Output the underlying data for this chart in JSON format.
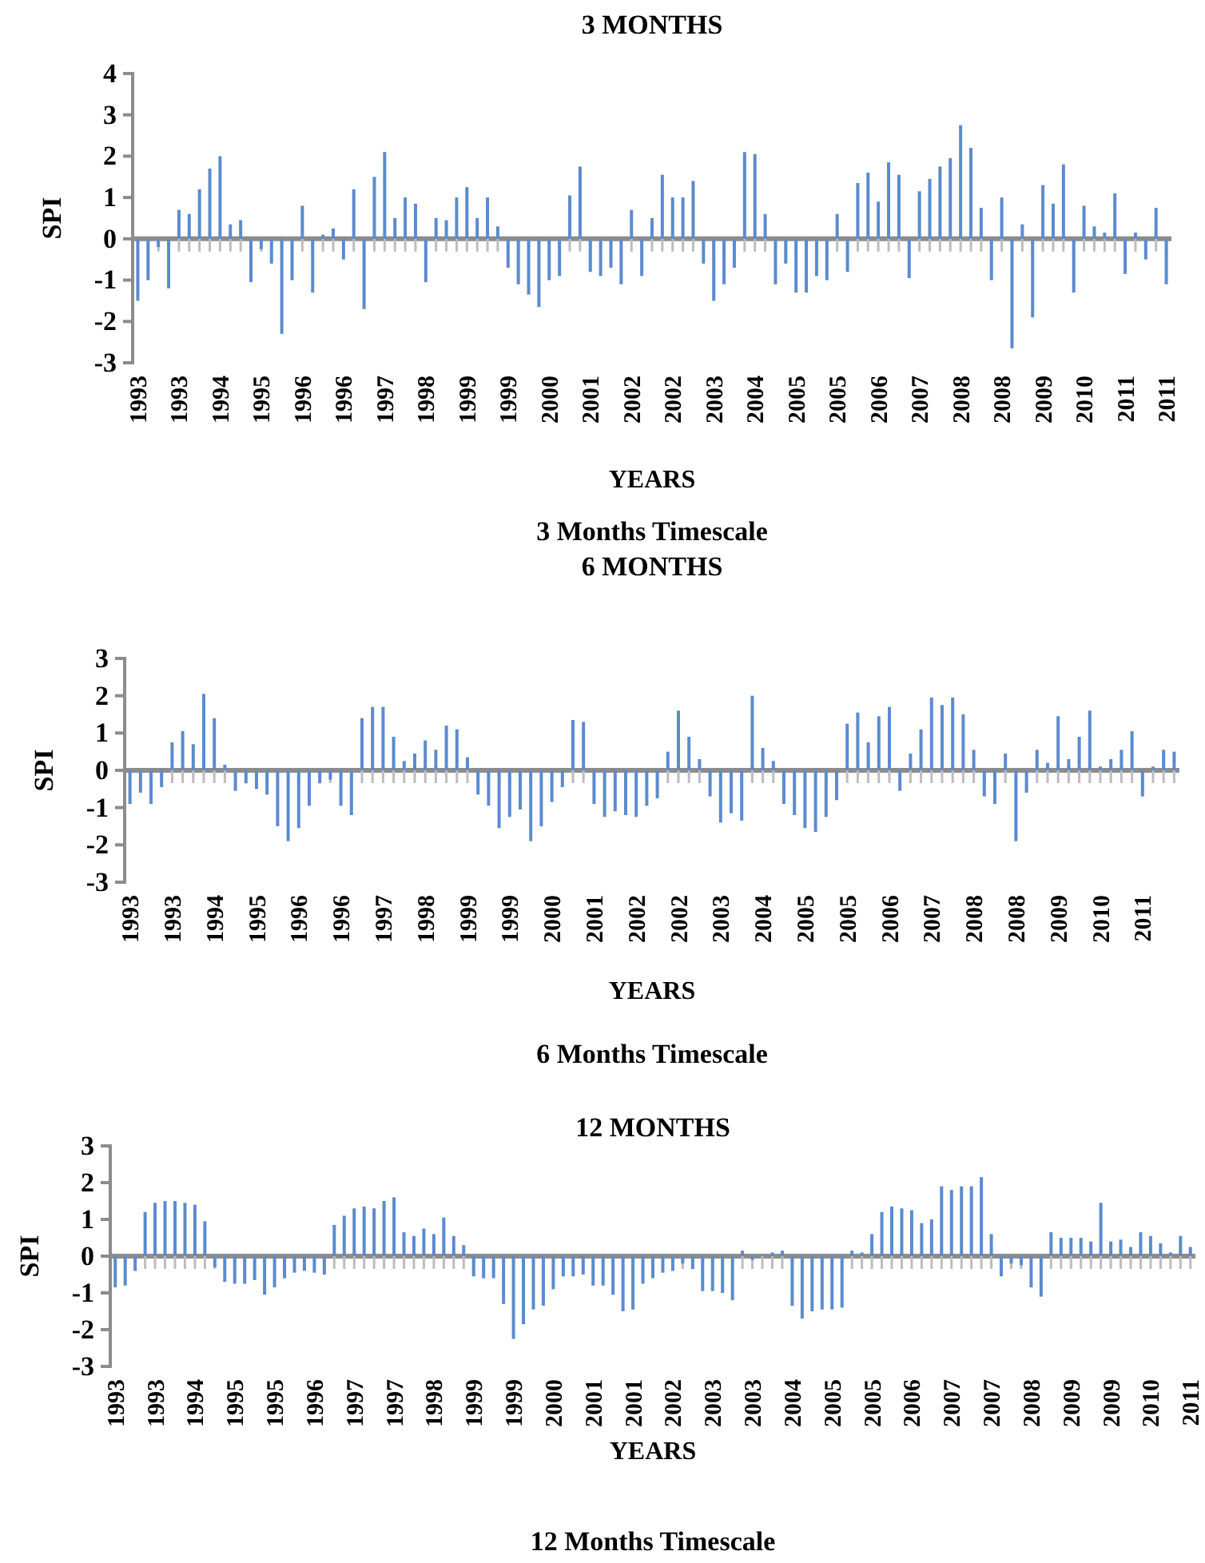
{
  "chart_data": [
    {
      "type": "bar",
      "title": "3 MONTHS",
      "xlabel": "YEARS",
      "ylabel": "SPI",
      "annotations": [
        "3 Months Timescale"
      ],
      "color": "#5b8bcf",
      "ylim": [
        -3,
        4
      ],
      "yticks": [
        -3,
        -2,
        -1,
        0,
        1,
        2,
        3,
        4
      ],
      "categories": [
        "1993",
        null,
        null,
        null,
        "1993",
        null,
        null,
        null,
        "1994",
        null,
        null,
        null,
        "1995",
        null,
        null,
        null,
        "1996",
        null,
        null,
        null,
        "1996",
        null,
        null,
        null,
        "1997",
        null,
        null,
        null,
        "1998",
        null,
        null,
        null,
        "1999",
        null,
        null,
        null,
        "1999",
        null,
        null,
        null,
        "2000",
        null,
        null,
        null,
        "2001",
        null,
        null,
        null,
        "2002",
        null,
        null,
        null,
        "2002",
        null,
        null,
        null,
        "2003",
        null,
        null,
        null,
        "2004",
        null,
        null,
        null,
        "2005",
        null,
        null,
        null,
        "2005",
        null,
        null,
        null,
        "2006",
        null,
        null,
        null,
        "2007",
        null,
        null,
        null,
        "2008",
        null,
        null,
        null,
        "2008",
        null,
        null,
        null,
        "2009",
        null,
        null,
        null,
        "2010",
        null,
        null,
        null,
        "2011",
        null,
        null,
        null,
        "2011"
      ],
      "values": [
        -1.5,
        -1.0,
        -0.2,
        -1.2,
        0.7,
        0.6,
        1.2,
        1.7,
        2.0,
        0.35,
        0.45,
        -1.05,
        -0.25,
        -0.6,
        -2.3,
        -1.0,
        0.8,
        -1.3,
        0.1,
        0.25,
        -0.5,
        1.2,
        -1.7,
        1.5,
        2.1,
        0.5,
        1.0,
        0.85,
        -1.05,
        0.5,
        0.45,
        1.0,
        1.25,
        0.5,
        1.0,
        0.3,
        -0.7,
        -1.1,
        -1.35,
        -1.65,
        -1.0,
        -0.9,
        1.05,
        1.75,
        -0.8,
        -0.9,
        -0.7,
        -1.1,
        0.7,
        -0.9,
        0.5,
        1.55,
        1.0,
        1.0,
        1.4,
        -0.6,
        -1.5,
        -1.1,
        -0.7,
        2.1,
        2.05,
        0.6,
        -1.1,
        -0.6,
        -1.3,
        -1.3,
        -0.9,
        -1.0,
        0.6,
        -0.8,
        1.35,
        1.6,
        0.9,
        1.85,
        1.55,
        -0.95,
        1.15,
        1.45,
        1.75,
        1.95,
        2.75,
        2.2,
        0.75,
        -1.0,
        1.0,
        -2.65,
        0.35,
        -1.9,
        1.3,
        0.85,
        1.8,
        -1.3,
        0.8,
        0.3,
        0.15,
        1.1,
        -0.85,
        0.15,
        -0.5,
        0.75,
        -1.1
      ]
    },
    {
      "type": "bar",
      "title": "6 MONTHS",
      "xlabel": "YEARS",
      "ylabel": "SPI",
      "annotations": [
        "6 Months Timescale"
      ],
      "color": "#5b8bcf",
      "ylim": [
        -3,
        3
      ],
      "yticks": [
        -3,
        -2,
        -1,
        0,
        1,
        2,
        3
      ],
      "categories": [
        "1993",
        null,
        null,
        null,
        "1993",
        null,
        null,
        null,
        "1994",
        null,
        null,
        null,
        "1995",
        null,
        null,
        null,
        "1996",
        null,
        null,
        null,
        "1996",
        null,
        null,
        null,
        "1997",
        null,
        null,
        null,
        "1998",
        null,
        null,
        null,
        "1999",
        null,
        null,
        null,
        "1999",
        null,
        null,
        null,
        "2000",
        null,
        null,
        null,
        "2001",
        null,
        null,
        null,
        "2002",
        null,
        null,
        null,
        "2002",
        null,
        null,
        null,
        "2003",
        null,
        null,
        null,
        "2004",
        null,
        null,
        null,
        "2005",
        null,
        null,
        null,
        "2005",
        null,
        null,
        null,
        "2006",
        null,
        null,
        null,
        "2007",
        null,
        null,
        null,
        "2008",
        null,
        null,
        null,
        "2008",
        null,
        null,
        null,
        "2009",
        null,
        null,
        null,
        "2010",
        null,
        null,
        null,
        "2011",
        null,
        null,
        null
      ],
      "values": [
        -0.9,
        -0.6,
        -0.9,
        -0.45,
        0.75,
        1.05,
        0.7,
        2.05,
        1.4,
        0.15,
        -0.55,
        -0.35,
        -0.5,
        -0.65,
        -1.5,
        -1.9,
        -1.55,
        -0.95,
        -0.35,
        -0.25,
        -0.95,
        -1.2,
        1.4,
        1.7,
        1.7,
        0.9,
        0.25,
        0.45,
        0.8,
        0.55,
        1.2,
        1.1,
        0.35,
        -0.65,
        -0.95,
        -1.55,
        -1.25,
        -1.05,
        -1.9,
        -1.5,
        -0.85,
        -0.45,
        1.35,
        1.3,
        -0.9,
        -1.25,
        -1.1,
        -1.2,
        -1.25,
        -0.95,
        -0.75,
        0.5,
        1.6,
        0.9,
        0.3,
        -0.7,
        -1.4,
        -1.15,
        -1.35,
        2.0,
        0.6,
        0.25,
        -0.9,
        -1.2,
        -1.55,
        -1.65,
        -1.25,
        -0.8,
        1.25,
        1.55,
        0.75,
        1.45,
        1.7,
        -0.55,
        0.45,
        1.1,
        1.95,
        1.75,
        1.95,
        1.5,
        0.55,
        -0.7,
        -0.9,
        0.45,
        -1.9,
        -0.6,
        0.55,
        0.2,
        1.45,
        0.3,
        0.9,
        1.6,
        0.1,
        0.3,
        0.55,
        1.05,
        -0.7,
        0.1,
        0.55,
        0.5
      ]
    },
    {
      "type": "bar",
      "title": "12 MONTHS",
      "xlabel": "YEARS",
      "ylabel": "SPI",
      "annotations": [
        "12 Months Timescale"
      ],
      "color": "#5b8bcf",
      "ylim": [
        -3,
        3
      ],
      "yticks": [
        -3,
        -2,
        -1,
        0,
        1,
        2,
        3
      ],
      "categories": [
        "1993",
        null,
        null,
        null,
        "1993",
        null,
        null,
        null,
        "1994",
        null,
        null,
        null,
        "1995",
        null,
        null,
        null,
        "1995",
        null,
        null,
        null,
        "1996",
        null,
        null,
        null,
        "1997",
        null,
        null,
        null,
        "1997",
        null,
        null,
        null,
        "1998",
        null,
        null,
        null,
        "1999",
        null,
        null,
        null,
        "1999",
        null,
        null,
        null,
        "2000",
        null,
        null,
        null,
        "2001",
        null,
        null,
        null,
        "2001",
        null,
        null,
        null,
        "2002",
        null,
        null,
        null,
        "2003",
        null,
        null,
        null,
        "2003",
        null,
        null,
        null,
        "2004",
        null,
        null,
        null,
        "2005",
        null,
        null,
        null,
        "2005",
        null,
        null,
        null,
        "2006",
        null,
        null,
        null,
        "2007",
        null,
        null,
        null,
        "2007",
        null,
        null,
        null,
        "2008",
        null,
        null,
        null,
        "2009",
        null,
        null,
        null,
        "2009",
        null,
        null,
        null,
        "2010",
        null,
        null,
        null,
        "2011"
      ],
      "values": [
        -0.85,
        -0.8,
        -0.4,
        1.2,
        1.45,
        1.5,
        1.5,
        1.45,
        1.4,
        0.95,
        -0.3,
        -0.7,
        -0.75,
        -0.75,
        -0.65,
        -1.05,
        -0.85,
        -0.6,
        -0.45,
        -0.4,
        -0.45,
        -0.5,
        0.85,
        1.1,
        1.3,
        1.35,
        1.3,
        1.5,
        1.6,
        0.65,
        0.55,
        0.75,
        0.6,
        1.05,
        0.55,
        0.3,
        -0.55,
        -0.6,
        -0.6,
        -1.3,
        -2.25,
        -1.85,
        -1.45,
        -1.35,
        -0.9,
        -0.55,
        -0.55,
        -0.5,
        -0.8,
        -0.8,
        -1.05,
        -1.5,
        -1.45,
        -0.75,
        -0.6,
        -0.45,
        -0.4,
        -0.2,
        -0.35,
        -0.95,
        -0.95,
        -1.0,
        -1.2,
        0.15,
        -0.1,
        0.05,
        0.1,
        0.15,
        -1.35,
        -1.7,
        -1.5,
        -1.45,
        -1.45,
        -1.4,
        0.15,
        0.1,
        0.6,
        1.2,
        1.35,
        1.3,
        1.25,
        0.9,
        1.0,
        1.9,
        1.8,
        1.9,
        1.9,
        2.15,
        0.6,
        -0.55,
        -0.2,
        -0.25,
        -0.85,
        -1.1,
        0.65,
        0.5,
        0.5,
        0.5,
        0.4,
        1.45,
        0.4,
        0.45,
        0.25,
        0.65,
        0.55,
        0.35,
        0.1,
        0.55,
        0.25
      ]
    }
  ]
}
